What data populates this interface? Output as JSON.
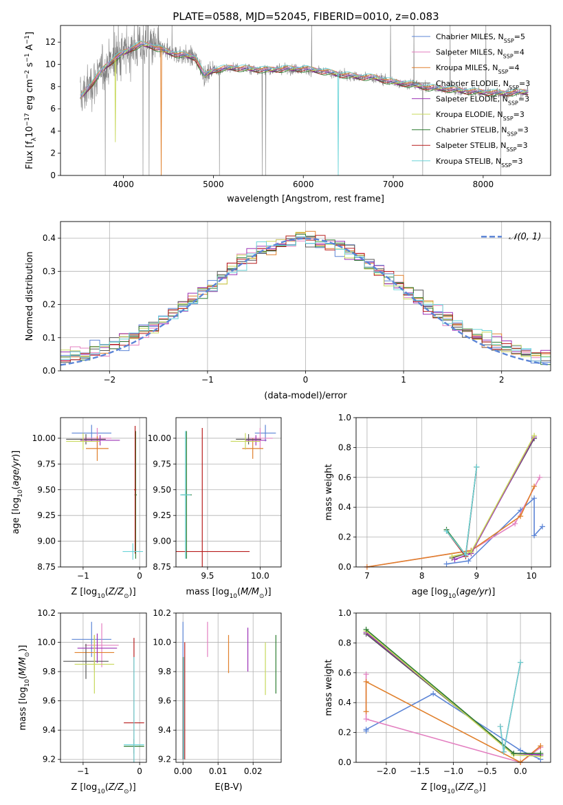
{
  "figure": {
    "title": "PLATE=0588, MJD=52045, FIBERID=0010, z=0.083"
  },
  "colors": {
    "Chabrier MILES": "#5b84d6",
    "Salpeter MILES": "#e37fc0",
    "Kroupa MILES": "#e07f2a",
    "Chabrier ELODIE": "#555555",
    "Salpeter ELODIE": "#9a2fb5",
    "Kroupa ELODIE": "#c7d85a",
    "Chabrier STELIB": "#2e7d32",
    "Salpeter STELIB": "#b71c1c",
    "Kroupa STELIB": "#6ad4d8",
    "spectrum": "#808080",
    "normal": "#5b84d6"
  },
  "chart_data": [
    {
      "id": "spectrum",
      "type": "line",
      "xlabel": "wavelength [Angstrom, rest frame]",
      "ylabel": "Flux [f_λ 10^-17 erg cm^-2 s^-1 A^-1]",
      "xlim": [
        3300,
        8750
      ],
      "ylim": [
        0,
        13.5
      ],
      "xticks": [
        "4000",
        "5000",
        "6000",
        "7000",
        "8000"
      ],
      "yticks": [
        "0",
        "2",
        "4",
        "6",
        "8",
        "10",
        "12"
      ],
      "grid": false,
      "legend_placement": "top-right",
      "legend": [
        {
          "name": "Chabrier MILES",
          "sub": "SSP",
          "n": "5"
        },
        {
          "name": "Salpeter MILES",
          "sub": "SSP",
          "n": "4"
        },
        {
          "name": "Kroupa MILES",
          "sub": "SSP",
          "n": "4"
        },
        {
          "name": "Chabrier ELODIE",
          "sub": "SSP",
          "n": "3"
        },
        {
          "name": "Salpeter ELODIE",
          "sub": "SSP",
          "n": "3"
        },
        {
          "name": "Kroupa ELODIE",
          "sub": "SSP",
          "n": "3"
        },
        {
          "name": "Chabrier STELIB",
          "sub": "SSP",
          "n": "3"
        },
        {
          "name": "Salpeter STELIB",
          "sub": "SSP",
          "n": "3"
        },
        {
          "name": "Kroupa STELIB",
          "sub": "SSP",
          "n": "3"
        }
      ],
      "model_continuum": {
        "x": [
          3520,
          3600,
          3700,
          3800,
          3900,
          4000,
          4100,
          4200,
          4300,
          4400,
          4500,
          4600,
          4700,
          4800,
          4900,
          5000,
          5200,
          5400,
          5600,
          5800,
          6000,
          6200,
          6400,
          6600,
          6800,
          7000,
          7200,
          7400,
          7600,
          7800,
          8000,
          8200,
          8400,
          8500
        ],
        "y": [
          7.0,
          7.8,
          8.8,
          9.8,
          10.5,
          11.0,
          11.5,
          11.8,
          11.7,
          11.4,
          11.1,
          10.9,
          10.8,
          10.6,
          9.0,
          9.5,
          9.7,
          9.6,
          9.5,
          9.6,
          9.6,
          9.4,
          9.1,
          8.9,
          8.8,
          8.4,
          8.2,
          7.9,
          7.8,
          7.6,
          7.5,
          7.4,
          7.5,
          7.5
        ]
      }
    },
    {
      "id": "residuals",
      "type": "histogram",
      "xlabel": "(data-model)/error",
      "ylabel": "Normed distribution",
      "xlim": [
        -2.5,
        2.5
      ],
      "ylim": [
        0,
        0.45
      ],
      "xticks": [
        "−2",
        "−1",
        "0",
        "1",
        "2"
      ],
      "yticks": [
        "0.0",
        "0.1",
        "0.2",
        "0.3",
        "0.4"
      ],
      "grid": true,
      "legend_placement": "top-right",
      "legend": [
        {
          "name": "𝒩(0, 1)"
        }
      ],
      "bin_width": 0.1,
      "reference": {
        "mean": 0,
        "sigma": 1
      }
    },
    {
      "id": "age_vs_Z",
      "type": "errorbar",
      "xlabel": "Z [log10(Z/Z⊙)]",
      "ylabel": "age [log10(age/yr)]",
      "xlim": [
        -1.4,
        0.12
      ],
      "ylim": [
        8.75,
        10.2
      ],
      "xticks": [
        "−1",
        "0"
      ],
      "yticks": [
        "8.75",
        "9.00",
        "9.25",
        "9.50",
        "9.75",
        "10.00"
      ],
      "grid": true,
      "points": [
        {
          "model": "Chabrier MILES",
          "x": -0.85,
          "xe": 0.35,
          "y": 10.05,
          "ye": 0.08
        },
        {
          "model": "Salpeter MILES",
          "x": -0.75,
          "xe": 0.25,
          "y": 10.0,
          "ye": 0.1
        },
        {
          "model": "Kroupa MILES",
          "x": -0.75,
          "xe": 0.2,
          "y": 9.9,
          "ye": 0.12
        },
        {
          "model": "Chabrier ELODIE",
          "x": -0.95,
          "xe": 0.35,
          "y": 9.99,
          "ye": 0.05
        },
        {
          "model": "Salpeter ELODIE",
          "x": -0.7,
          "xe": 0.35,
          "y": 9.98,
          "ye": 0.05
        },
        {
          "model": "Kroupa ELODIE",
          "x": -1.0,
          "xe": 0.3,
          "y": 9.97,
          "ye": 0.08
        },
        {
          "model": "Chabrier STELIB",
          "x": -0.07,
          "xe": 0.02,
          "y": 9.45,
          "ye": 0.62
        },
        {
          "model": "Salpeter STELIB",
          "x": -0.08,
          "xe": 0.02,
          "y": 9.5,
          "ye": 0.62
        },
        {
          "model": "Kroupa STELIB",
          "x": -0.12,
          "xe": 0.18,
          "y": 8.9,
          "ye": 0.08
        }
      ]
    },
    {
      "id": "age_vs_mass",
      "type": "errorbar",
      "xlabel": "mass [log10(M/M⊙)]",
      "ylabel": "",
      "xlim": [
        9.2,
        10.2
      ],
      "ylim": [
        8.75,
        10.2
      ],
      "xticks": [
        "9.5",
        "10.0"
      ],
      "yticks": [
        "8.75",
        "9.00",
        "9.25",
        "9.50",
        "9.75",
        "10.00"
      ],
      "grid": true,
      "points": [
        {
          "model": "Chabrier MILES",
          "x": 10.05,
          "xe": 0.1,
          "y": 10.05,
          "ye": 0.08
        },
        {
          "model": "Salpeter MILES",
          "x": 10.0,
          "xe": 0.12,
          "y": 10.0,
          "ye": 0.1
        },
        {
          "model": "Kroupa MILES",
          "x": 9.93,
          "xe": 0.1,
          "y": 9.9,
          "ye": 0.1
        },
        {
          "model": "Chabrier ELODIE",
          "x": 9.89,
          "xe": 0.12,
          "y": 9.99,
          "ye": 0.05
        },
        {
          "model": "Salpeter ELODIE",
          "x": 9.96,
          "xe": 0.1,
          "y": 9.98,
          "ye": 0.05
        },
        {
          "model": "Kroupa ELODIE",
          "x": 9.86,
          "xe": 0.14,
          "y": 9.97,
          "ye": 0.08
        },
        {
          "model": "Chabrier STELIB",
          "x": 9.3,
          "xe": 0.05,
          "y": 9.45,
          "ye": 0.62
        },
        {
          "model": "Salpeter STELIB",
          "x": 9.45,
          "xe": 0.45,
          "y": 8.9,
          "ye": 1.2
        },
        {
          "model": "Kroupa STELIB",
          "x": 9.29,
          "xe": 0.05,
          "y": 9.45,
          "ye": 0.62
        }
      ]
    },
    {
      "id": "weight_vs_age",
      "type": "line",
      "xlabel": "age [log10(age/yr)]",
      "ylabel": "mass weight",
      "xlim": [
        6.8,
        10.35
      ],
      "ylim": [
        0,
        1
      ],
      "xticks": [
        "7",
        "8",
        "9",
        "10"
      ],
      "yticks": [
        "0.0",
        "0.2",
        "0.4",
        "0.6",
        "0.8",
        "1.0"
      ],
      "grid": true,
      "series": [
        {
          "model": "Chabrier MILES",
          "x": [
            8.45,
            8.85,
            9.8,
            10.05,
            10.05,
            10.2
          ],
          "y": [
            0.02,
            0.04,
            0.38,
            0.46,
            0.21,
            0.27
          ]
        },
        {
          "model": "Salpeter MILES",
          "x": [
            7.0,
            8.9,
            9.7,
            10.15
          ],
          "y": [
            0.0,
            0.11,
            0.29,
            0.6
          ]
        },
        {
          "model": "Kroupa MILES",
          "x": [
            7.0,
            8.9,
            9.8,
            10.05
          ],
          "y": [
            0.0,
            0.11,
            0.34,
            0.54
          ]
        },
        {
          "model": "Chabrier ELODIE",
          "x": [
            8.55,
            8.9,
            10.05
          ],
          "y": [
            0.06,
            0.1,
            0.86
          ]
        },
        {
          "model": "Salpeter ELODIE",
          "x": [
            8.6,
            8.9,
            10.05
          ],
          "y": [
            0.05,
            0.09,
            0.87
          ]
        },
        {
          "model": "Kroupa ELODIE",
          "x": [
            8.55,
            8.9,
            10.05
          ],
          "y": [
            0.07,
            0.1,
            0.88
          ]
        },
        {
          "model": "Chabrier STELIB",
          "x": [
            8.45,
            8.8,
            9.0
          ],
          "y": [
            0.25,
            0.08,
            0.67
          ]
        },
        {
          "model": "Salpeter STELIB",
          "x": [
            8.45,
            8.8,
            9.0
          ],
          "y": [
            0.24,
            0.07,
            0.67
          ]
        },
        {
          "model": "Kroupa STELIB",
          "x": [
            8.45,
            8.8,
            9.0
          ],
          "y": [
            0.24,
            0.08,
            0.67
          ]
        }
      ]
    },
    {
      "id": "mass_vs_Z",
      "type": "errorbar",
      "xlabel": "Z [log10(Z/Z⊙)]",
      "ylabel": "mass [log10(M/M⊙)]",
      "xlim": [
        -1.4,
        0.12
      ],
      "ylim": [
        9.18,
        10.2
      ],
      "xticks": [
        "−1",
        "0"
      ],
      "yticks": [
        "9.2",
        "9.4",
        "9.6",
        "9.8",
        "10.0",
        "10.2"
      ],
      "grid": true,
      "points": [
        {
          "model": "Chabrier MILES",
          "x": -0.85,
          "xe": 0.35,
          "y": 10.02,
          "ye": 0.12
        },
        {
          "model": "Salpeter MILES",
          "x": -0.67,
          "xe": 0.3,
          "y": 9.98,
          "ye": 0.15
        },
        {
          "model": "Kroupa MILES",
          "x": -0.8,
          "xe": 0.35,
          "y": 9.93,
          "ye": 0.12
        },
        {
          "model": "Chabrier ELODIE",
          "x": -0.95,
          "xe": 0.4,
          "y": 9.87,
          "ye": 0.12
        },
        {
          "model": "Salpeter ELODIE",
          "x": -0.75,
          "xe": 0.35,
          "y": 9.96,
          "ye": 0.1
        },
        {
          "model": "Kroupa ELODIE",
          "x": -0.8,
          "xe": 0.35,
          "y": 9.85,
          "ye": 0.2
        },
        {
          "model": "Chabrier STELIB",
          "x": -0.1,
          "xe": 0.18,
          "y": 9.29,
          "ye": 0.05
        },
        {
          "model": "Salpeter STELIB",
          "x": -0.1,
          "xe": 0.18,
          "y": 9.45,
          "ye": 0.58
        },
        {
          "model": "Kroupa STELIB",
          "x": -0.1,
          "xe": 0.18,
          "y": 9.3,
          "ye": 0.6
        }
      ]
    },
    {
      "id": "mass_vs_EBV",
      "type": "errorbar",
      "xlabel": "E(B-V)",
      "ylabel": "",
      "xlim": [
        -0.002,
        0.028
      ],
      "ylim": [
        9.18,
        10.2
      ],
      "xticks": [
        "0.00",
        "0.01",
        "0.02"
      ],
      "yticks": [
        "9.2",
        "9.4",
        "9.6",
        "9.8",
        "10.0",
        "10.2"
      ],
      "grid": true,
      "points": [
        {
          "model": "Chabrier MILES",
          "x": 0.0,
          "y": 10.02,
          "ye": 0.12
        },
        {
          "model": "Salpeter MILES",
          "x": 0.007,
          "y": 10.02,
          "ye": 0.12
        },
        {
          "model": "Kroupa MILES",
          "x": 0.013,
          "y": 9.92,
          "ye": 0.13
        },
        {
          "model": "Chabrier ELODIE",
          "x": 0.0,
          "y": 9.55,
          "ye": 0.35
        },
        {
          "model": "Salpeter ELODIE",
          "x": 0.0185,
          "y": 9.95,
          "ye": 0.15
        },
        {
          "model": "Kroupa ELODIE",
          "x": 0.0235,
          "y": 9.82,
          "ye": 0.18
        },
        {
          "model": "Chabrier STELIB",
          "x": 0.0265,
          "y": 9.85,
          "ye": 0.2
        },
        {
          "model": "Salpeter STELIB",
          "x": 0.0005,
          "y": 9.6,
          "ye": 0.4
        },
        {
          "model": "Kroupa STELIB",
          "x": 0.0002,
          "y": 9.55,
          "ye": 0.35
        }
      ]
    },
    {
      "id": "weight_vs_Z",
      "type": "line",
      "xlabel": "Z [log10(Z/Z⊙)]",
      "ylabel": "mass weight",
      "xlim": [
        -2.45,
        0.45
      ],
      "ylim": [
        0,
        1
      ],
      "xticks": [
        "−2.0",
        "−1.5",
        "−1.0",
        "−0.5",
        "0.0"
      ],
      "yticks": [
        "0.0",
        "0.2",
        "0.4",
        "0.6",
        "0.8",
        "1.0"
      ],
      "grid": true,
      "series": [
        {
          "model": "Chabrier MILES",
          "x": [
            -2.3,
            -2.3,
            -1.3,
            0.0,
            0.3
          ],
          "y": [
            0.21,
            0.22,
            0.46,
            0.08,
            0.02
          ]
        },
        {
          "model": "Salpeter MILES",
          "x": [
            -2.3,
            -2.3,
            0.0,
            0.3
          ],
          "y": [
            0.59,
            0.29,
            0.0,
            0.1
          ]
        },
        {
          "model": "Kroupa MILES",
          "x": [
            -2.3,
            -2.3,
            0.0,
            0.3
          ],
          "y": [
            0.34,
            0.54,
            0.0,
            0.11
          ]
        },
        {
          "model": "Chabrier ELODIE",
          "x": [
            -2.3,
            -0.1,
            0.3
          ],
          "y": [
            0.86,
            0.06,
            0.05
          ]
        },
        {
          "model": "Salpeter ELODIE",
          "x": [
            -2.3,
            -0.1,
            0.3
          ],
          "y": [
            0.87,
            0.06,
            0.05
          ]
        },
        {
          "model": "Kroupa ELODIE",
          "x": [
            -2.3,
            -0.1,
            0.3
          ],
          "y": [
            0.88,
            0.05,
            0.04
          ]
        },
        {
          "model": "Chabrier STELIB",
          "x": [
            -2.3,
            -0.1,
            0.3
          ],
          "y": [
            0.89,
            0.06,
            0.06
          ]
        },
        {
          "model": "Salpeter STELIB",
          "x": [
            -0.3,
            -0.25,
            0.0
          ],
          "y": [
            0.24,
            0.07,
            0.67
          ]
        },
        {
          "model": "Kroupa STELIB",
          "x": [
            -0.3,
            -0.25,
            0.0
          ],
          "y": [
            0.24,
            0.07,
            0.67
          ]
        }
      ]
    }
  ]
}
